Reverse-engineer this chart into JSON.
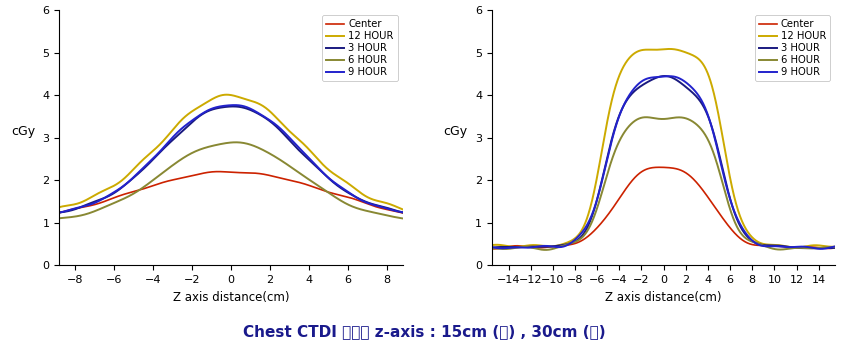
{
  "title": "Chest CTDI 측정값 z-axis : 15cm (좌) , 30cm (우)",
  "title_color": "#1a1a8c",
  "ylabel": "cGy",
  "xlabel": "Z axis distance(cm)",
  "legend_labels": [
    "Center",
    "12 HOUR",
    "3 HOUR",
    "6 HOUR",
    "9 HOUR"
  ],
  "legend_colors": [
    "#cc2200",
    "#ccaa00",
    "#1a1a80",
    "#888833",
    "#2222cc"
  ],
  "plot1": {
    "xlim": [
      -8.8,
      8.8
    ],
    "ylim": [
      0,
      6
    ],
    "xticks": [
      -8,
      -6,
      -4,
      -2,
      0,
      2,
      4,
      6,
      8
    ],
    "yticks": [
      0,
      1,
      2,
      3,
      4,
      5,
      6
    ]
  },
  "plot2": {
    "xlim": [
      -15.5,
      15.5
    ],
    "ylim": [
      0,
      6
    ],
    "xticks": [
      -14,
      -12,
      -10,
      -8,
      -6,
      -4,
      -2,
      0,
      2,
      4,
      6,
      8,
      10,
      12,
      14
    ],
    "yticks": [
      0,
      1,
      2,
      3,
      4,
      5,
      6
    ]
  }
}
